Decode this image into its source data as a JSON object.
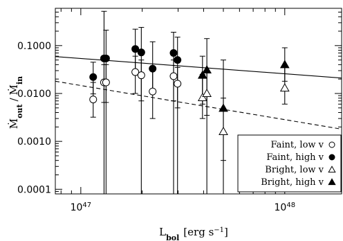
{
  "chart_data": {
    "type": "scatter",
    "xlabel": "L_bol [erg s^-1]",
    "ylabel": "Ṁ_out / Ṁ_in",
    "xscale": "log",
    "yscale": "log",
    "xlim": [
      7.5e+46,
      1.9e+48
    ],
    "ylim": [
      8e-05,
      0.6
    ],
    "x_ticks": [
      {
        "value": 1e+47,
        "mantissa": "10",
        "exp": "47"
      },
      {
        "value": 1e+48,
        "mantissa": "10",
        "exp": "48"
      }
    ],
    "y_ticks": [
      {
        "value": 0.1,
        "label": "0.1000"
      },
      {
        "value": 0.01,
        "label": "0.0100"
      },
      {
        "value": 0.001,
        "label": "0.0010"
      },
      {
        "value": 0.0001,
        "label": "0.0001"
      }
    ],
    "legend_position": "lower-right",
    "series": [
      {
        "name": "Faint, low v",
        "marker": "open-circle",
        "points": [
          {
            "x": 1.15e+47,
            "y": 0.0075,
            "ylo": 0.0032,
            "yhi": 0.017
          },
          {
            "x": 1.3e+47,
            "y": 0.017,
            "ylo": 0.0065,
            "yhi": 0.04
          },
          {
            "x": 1.33e+47,
            "y": 0.017,
            "ylo": 0.0065,
            "yhi": 0.04
          },
          {
            "x": 1.85e+47,
            "y": 0.028,
            "ylo": 0.01,
            "yhi": 0.06
          },
          {
            "x": 1.98e+47,
            "y": 0.024,
            "ylo": 0.007,
            "yhi": 0.05
          },
          {
            "x": 2.25e+47,
            "y": 0.011,
            "ylo": 0.003,
            "yhi": 0.03
          },
          {
            "x": 2.85e+47,
            "y": 0.023,
            "ylo": 0.007,
            "yhi": 0.05
          },
          {
            "x": 2.98e+47,
            "y": 0.016,
            "ylo": 0.005,
            "yhi": 0.035
          }
        ]
      },
      {
        "name": "Faint, high v",
        "marker": "filled-circle",
        "points": [
          {
            "x": 1.15e+47,
            "y": 0.022,
            "ylo": 0.0098,
            "yhi": 0.045
          },
          {
            "x": 1.3e+47,
            "y": 0.054,
            "ylo": 8e-05,
            "yhi": 0.52
          },
          {
            "x": 1.33e+47,
            "y": 0.054,
            "ylo": 8e-05,
            "yhi": 0.21
          },
          {
            "x": 1.85e+47,
            "y": 0.085,
            "ylo": 0.025,
            "yhi": 0.22
          },
          {
            "x": 1.98e+47,
            "y": 0.072,
            "ylo": 8e-05,
            "yhi": 0.24
          },
          {
            "x": 2.25e+47,
            "y": 0.033,
            "ylo": 0.01,
            "yhi": 0.12
          },
          {
            "x": 2.85e+47,
            "y": 0.07,
            "ylo": 8e-05,
            "yhi": 0.19
          },
          {
            "x": 2.98e+47,
            "y": 0.05,
            "ylo": 8e-05,
            "yhi": 0.15
          }
        ]
      },
      {
        "name": "Bright, low v",
        "marker": "open-triangle",
        "points": [
          {
            "x": 3.95e+47,
            "y": 0.0082,
            "ylo": 0.003,
            "yhi": 0.025
          },
          {
            "x": 4.15e+47,
            "y": 0.01,
            "ylo": 0.0035,
            "yhi": 0.03
          },
          {
            "x": 5e+47,
            "y": 0.0016,
            "ylo": 0.0004,
            "yhi": 0.008
          },
          {
            "x": 1e+48,
            "y": 0.013,
            "ylo": 0.006,
            "yhi": 0.035
          }
        ]
      },
      {
        "name": "Bright, high v",
        "marker": "filled-triangle",
        "points": [
          {
            "x": 3.95e+47,
            "y": 0.024,
            "ylo": 0.006,
            "yhi": 0.06
          },
          {
            "x": 4.15e+47,
            "y": 0.031,
            "ylo": 8e-05,
            "yhi": 0.14
          },
          {
            "x": 5e+47,
            "y": 0.0049,
            "ylo": 8e-05,
            "yhi": 0.05
          },
          {
            "x": 1e+48,
            "y": 0.04,
            "ylo": 0.018,
            "yhi": 0.09
          }
        ]
      }
    ],
    "lines": [
      {
        "style": "solid",
        "x": [
          7.5e+46,
          1.9e+48
        ],
        "y": [
          0.059,
          0.021
        ]
      },
      {
        "style": "dashed",
        "x": [
          7.5e+46,
          1.9e+48
        ],
        "y": [
          0.018,
          0.0018
        ]
      }
    ]
  }
}
